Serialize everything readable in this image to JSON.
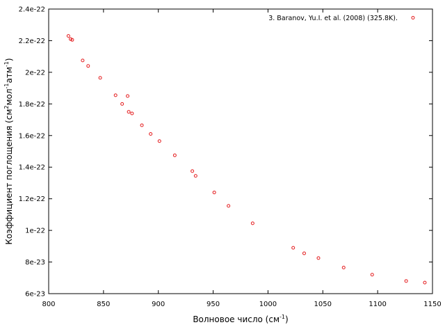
{
  "chart_data": {
    "type": "scatter",
    "xlabel": {
      "text": "Волновое число (см",
      "sup": "-1",
      "tail": ")"
    },
    "ylabel": {
      "parts": [
        {
          "t": "Коэффициент поглощения (см"
        },
        {
          "t": "2",
          "sup": true
        },
        {
          "t": "мол"
        },
        {
          "t": "-1",
          "sup": true
        },
        {
          "t": "атм"
        },
        {
          "t": "-1",
          "sup": true
        },
        {
          "t": ")"
        }
      ]
    },
    "xlim": [
      800,
      1150
    ],
    "ylim": [
      6e-23,
      2.4e-22
    ],
    "x_ticks": [
      800,
      850,
      900,
      950,
      1000,
      1050,
      1100,
      1150
    ],
    "x_tick_labels": [
      "800",
      "850",
      "900",
      "950",
      "1000",
      "1050",
      "1100",
      "1150"
    ],
    "y_ticks": [
      6e-23,
      8e-23,
      1e-22,
      1.2e-22,
      1.4e-22,
      1.6e-22,
      1.8e-22,
      2e-22,
      2.2e-22,
      2.4e-22
    ],
    "y_tick_labels": [
      "6e-23",
      "8e-23",
      "1e-22",
      "1.2e-22",
      "1.4e-22",
      "1.6e-22",
      "1.8e-22",
      "2e-22",
      "2.2e-22",
      "2.4e-22"
    ],
    "grid": false,
    "legend_position": "top-right",
    "series": [
      {
        "name": "3. Baranov, Yu.I. et al. (2008) (325.8K).",
        "color": "#e41a1c",
        "marker": "open-circle",
        "points": [
          [
            818,
            2.23e-22
          ],
          [
            820,
            2.21e-22
          ],
          [
            821.5,
            2.205e-22
          ],
          [
            831,
            2.075e-22
          ],
          [
            836,
            2.04e-22
          ],
          [
            847,
            1.965e-22
          ],
          [
            861,
            1.855e-22
          ],
          [
            867,
            1.8e-22
          ],
          [
            872,
            1.85e-22
          ],
          [
            873,
            1.75e-22
          ],
          [
            876,
            1.74e-22
          ],
          [
            885,
            1.665e-22
          ],
          [
            893,
            1.61e-22
          ],
          [
            901,
            1.565e-22
          ],
          [
            915,
            1.475e-22
          ],
          [
            931,
            1.375e-22
          ],
          [
            934,
            1.345e-22
          ],
          [
            951,
            1.24e-22
          ],
          [
            964,
            1.155e-22
          ],
          [
            986,
            1.045e-22
          ],
          [
            1023,
            8.9e-23
          ],
          [
            1033,
            8.55e-23
          ],
          [
            1046,
            8.25e-23
          ],
          [
            1069,
            7.65e-23
          ],
          [
            1095,
            7.2e-23
          ],
          [
            1126,
            6.8e-23
          ],
          [
            1143,
            6.7e-23
          ]
        ]
      }
    ]
  }
}
